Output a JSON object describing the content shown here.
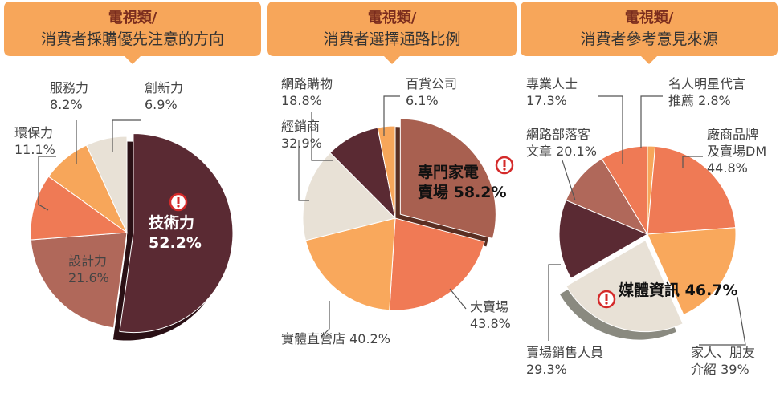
{
  "chart_data": [
    {
      "type": "pie",
      "title": "電視類/",
      "subtitle": "消費者採購優先注意的方向",
      "categories": [
        "技術力",
        "設計力",
        "環保力",
        "服務力",
        "創新力"
      ],
      "values": [
        52.2,
        21.6,
        11.1,
        8.2,
        6.9
      ],
      "value_labels": [
        "52.2%",
        "21.6%",
        "11.1%",
        "8.2%",
        "6.9%"
      ],
      "colors": [
        "#5a2a33",
        "#b0685a",
        "#ef7a55",
        "#f7a65a",
        "#e8e1d6"
      ],
      "highlight": 0
    },
    {
      "type": "pie",
      "title": "電視類/",
      "subtitle": "消費者選擇通路比例",
      "categories": [
        "專門家電\n賣場",
        "大賣場",
        "實體直營店",
        "經銷商",
        "網路購物",
        "百貨公司"
      ],
      "values": [
        58.2,
        43.8,
        40.2,
        32.9,
        18.8,
        6.1
      ],
      "value_labels": [
        "58.2%",
        "43.8%",
        "40.2%",
        "32.9%",
        "18.8%",
        "6.1%"
      ],
      "colors": [
        "#a86050",
        "#f07a55",
        "#f9a85c",
        "#e8e1d6",
        "#5a2a33",
        "#f7a65a"
      ],
      "highlight": 0
    },
    {
      "type": "pie",
      "title": "電視類/",
      "subtitle": "消費者參考意見來源",
      "categories": [
        "名人明星代言\n推薦",
        "廠商品牌\n及賣場DM",
        "家人、朋友\n介紹",
        "媒體資訊",
        "賣場銷售人員",
        "網路部落客\n文章",
        "專業人士"
      ],
      "values": [
        2.8,
        44.8,
        39,
        46.7,
        29.3,
        20.1,
        17.3
      ],
      "value_labels": [
        "2.8%",
        "44.8%",
        "39%",
        "46.7%",
        "29.3%",
        "20.1%",
        "17.3%"
      ],
      "colors": [
        "#f7a65a",
        "#ef7a55",
        "#f9a85c",
        "#e8e1d6",
        "#5a2a33",
        "#b0685a",
        "#ef7a55"
      ],
      "highlight": 3
    }
  ]
}
